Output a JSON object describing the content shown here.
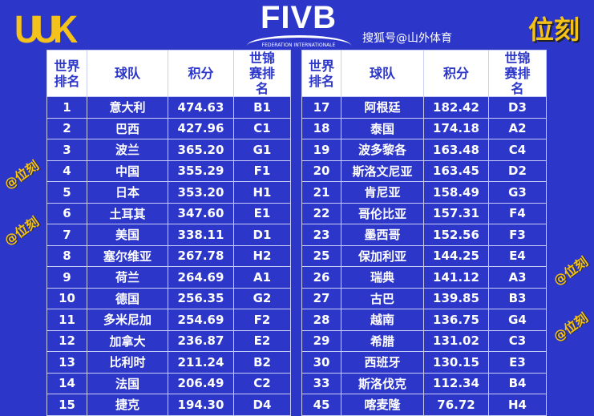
{
  "logo_left": "UUK",
  "fivb": {
    "title": "FIVB",
    "subtitle": "FEDERATION INTERNATIONALE"
  },
  "brand": "位刻",
  "headers": [
    "世界排名",
    "球队",
    "积分",
    "世锦赛排名"
  ],
  "left_rows": [
    [
      "1",
      "意大利",
      "474.63",
      "B1"
    ],
    [
      "2",
      "巴西",
      "427.96",
      "C1"
    ],
    [
      "3",
      "波兰",
      "365.20",
      "G1"
    ],
    [
      "4",
      "中国",
      "355.29",
      "F1"
    ],
    [
      "5",
      "日本",
      "353.20",
      "H1"
    ],
    [
      "6",
      "土耳其",
      "347.60",
      "E1"
    ],
    [
      "7",
      "美国",
      "338.11",
      "D1"
    ],
    [
      "8",
      "塞尔维亚",
      "267.78",
      "H2"
    ],
    [
      "9",
      "荷兰",
      "264.69",
      "A1"
    ],
    [
      "10",
      "德国",
      "256.35",
      "G2"
    ],
    [
      "11",
      "多米尼加",
      "254.69",
      "F2"
    ],
    [
      "12",
      "加拿大",
      "236.87",
      "E2"
    ],
    [
      "13",
      "比利时",
      "211.24",
      "B2"
    ],
    [
      "14",
      "法国",
      "206.49",
      "C2"
    ],
    [
      "15",
      "捷克",
      "194.30",
      "D4"
    ]
  ],
  "right_rows": [
    [
      "17",
      "阿根廷",
      "182.42",
      "D3"
    ],
    [
      "18",
      "泰国",
      "174.18",
      "A2"
    ],
    [
      "19",
      "波多黎各",
      "163.48",
      "C4"
    ],
    [
      "20",
      "斯洛文尼亚",
      "163.45",
      "D2"
    ],
    [
      "21",
      "肯尼亚",
      "158.49",
      "G3"
    ],
    [
      "22",
      "哥伦比亚",
      "157.31",
      "F4"
    ],
    [
      "23",
      "墨西哥",
      "152.56",
      "F3"
    ],
    [
      "25",
      "保加利亚",
      "144.25",
      "E4"
    ],
    [
      "26",
      "瑞典",
      "141.12",
      "A3"
    ],
    [
      "27",
      "古巴",
      "139.85",
      "B3"
    ],
    [
      "28",
      "越南",
      "136.75",
      "G4"
    ],
    [
      "29",
      "希腊",
      "131.02",
      "C3"
    ],
    [
      "30",
      "西班牙",
      "130.15",
      "E3"
    ],
    [
      "33",
      "斯洛伐克",
      "112.34",
      "B4"
    ],
    [
      "45",
      "喀麦隆",
      "76.72",
      "H4"
    ]
  ],
  "watermark": "@位刻",
  "sohu": "搜狐号@山外体育"
}
